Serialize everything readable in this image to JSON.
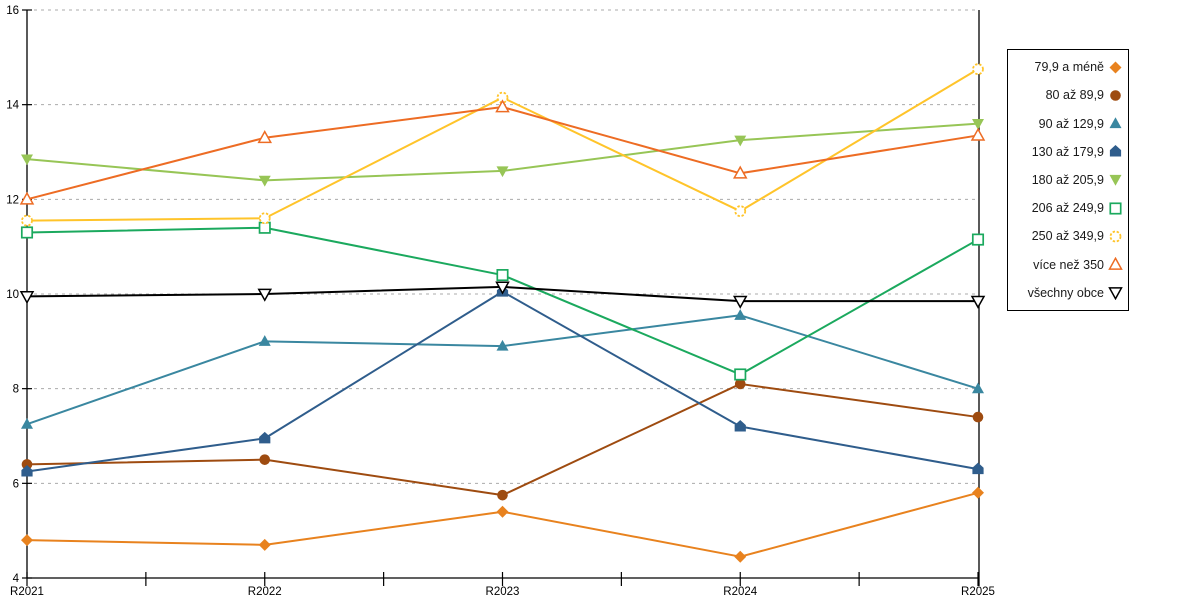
{
  "chart_data": {
    "type": "line",
    "title": "",
    "xlabel": "",
    "ylabel": "",
    "x_categories": [
      "R2021",
      "R2022",
      "R2023",
      "R2024",
      "R2025"
    ],
    "ylim": [
      4,
      16
    ],
    "yticks": [
      4,
      6,
      8,
      10,
      12,
      14,
      16
    ],
    "grid": "horizontal-dashed",
    "gridline_color": "#ababab",
    "axis_color": "#000000",
    "legend_position": "right-outside",
    "series": [
      {
        "name": "79,9 a méně",
        "marker": "diamond-filled",
        "color": "#E8821E",
        "values": [
          4.8,
          4.7,
          5.4,
          4.45,
          5.8
        ]
      },
      {
        "name": "80 až 89,9",
        "marker": "circle-filled",
        "color": "#9E4B10",
        "values": [
          6.4,
          6.5,
          5.75,
          8.1,
          7.4
        ]
      },
      {
        "name": "90 až 129,9",
        "marker": "triangle-up-filled",
        "color": "#3A87A0",
        "values": [
          7.25,
          9.0,
          8.9,
          9.55,
          8.0
        ]
      },
      {
        "name": "130 až 179,9",
        "marker": "pentagon-filled",
        "color": "#2F5D8C",
        "values": [
          6.25,
          6.95,
          10.05,
          7.2,
          6.3
        ]
      },
      {
        "name": "180 až 205,9",
        "marker": "triangle-down-filled",
        "color": "#97C556",
        "values": [
          12.85,
          12.4,
          12.6,
          13.25,
          13.6
        ]
      },
      {
        "name": "206 až 249,9",
        "marker": "square-open",
        "color": "#1BA95E",
        "values": [
          11.3,
          11.4,
          10.4,
          8.3,
          11.15
        ]
      },
      {
        "name": "250 až 349,9",
        "marker": "circle-open-dashed",
        "color": "#FFC42A",
        "values": [
          11.55,
          11.6,
          14.15,
          11.75,
          14.75
        ]
      },
      {
        "name": "více než 350",
        "marker": "triangle-up-open",
        "color": "#ED6C24",
        "values": [
          12.0,
          13.3,
          13.95,
          12.55,
          13.35
        ]
      },
      {
        "name": "všechny obce",
        "marker": "triangle-down-open",
        "color": "#000000",
        "values": [
          9.95,
          10.0,
          10.15,
          9.85,
          9.85
        ]
      }
    ]
  }
}
